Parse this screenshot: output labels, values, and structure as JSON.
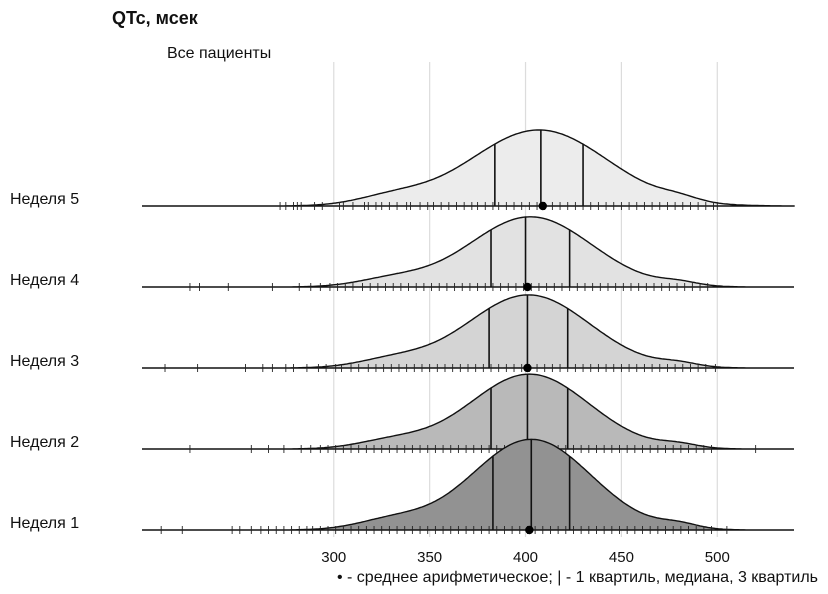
{
  "chart_data": {
    "type": "ridgeline",
    "title": "QTc, мсек",
    "subtitle": "Все пациенты",
    "caption": "• - среднее арифметическое; | - 1 квартиль, медиана, 3 квартиль",
    "xlim": [
      200,
      540
    ],
    "xticks": [
      "300",
      "350",
      "400",
      "450",
      "500"
    ],
    "grid": true,
    "series": [
      {
        "name": "Неделя 5",
        "fill": "#ececec",
        "q1": 384,
        "median": 408,
        "q3": 430,
        "mean": 409,
        "peak": 1.3,
        "rugs": [
          272,
          275,
          279,
          281,
          283,
          290,
          294,
          303,
          305,
          310,
          316,
          318,
          322,
          325,
          329,
          333,
          338,
          340,
          345,
          349,
          352,
          356,
          360,
          364,
          368,
          372,
          375,
          379,
          383,
          386,
          390,
          394,
          398,
          402,
          406,
          410,
          414,
          418,
          422,
          426,
          430,
          434,
          438,
          442,
          446,
          450,
          454,
          458,
          462,
          466,
          470,
          474,
          478,
          482,
          486,
          490,
          494,
          498,
          500
        ]
      },
      {
        "name": "Неделя 4",
        "fill": "#e2e2e2",
        "q1": 382,
        "median": 400,
        "q3": 423,
        "mean": 401,
        "peak": 1.2,
        "rugs": [
          225,
          230,
          245,
          268,
          282,
          288,
          293,
          298,
          302,
          306,
          310,
          315,
          319,
          323,
          327,
          331,
          335,
          339,
          343,
          347,
          351,
          355,
          359,
          363,
          367,
          371,
          375,
          379,
          383,
          387,
          391,
          395,
          399,
          403,
          407,
          411,
          415,
          419,
          423,
          427,
          431,
          435,
          439,
          443,
          447,
          451,
          455,
          459,
          463,
          467,
          471,
          475,
          479,
          483,
          487,
          491,
          495
        ]
      },
      {
        "name": "Неделя 3",
        "fill": "#d4d4d4",
        "q1": 381,
        "median": 401,
        "q3": 422,
        "mean": 401,
        "peak": 1.25,
        "rugs": [
          212,
          229,
          254,
          263,
          268,
          275,
          279,
          286,
          292,
          296,
          301,
          304,
          309,
          313,
          318,
          322,
          326,
          330,
          334,
          338,
          342,
          346,
          350,
          354,
          358,
          362,
          366,
          370,
          374,
          378,
          382,
          386,
          390,
          394,
          398,
          402,
          406,
          410,
          414,
          418,
          422,
          426,
          430,
          434,
          438,
          442,
          446,
          450,
          454,
          458,
          462,
          466,
          470,
          474,
          478,
          482,
          486,
          490,
          494,
          499
        ]
      },
      {
        "name": "Неделя 2",
        "fill": "#b9b9b9",
        "q1": 382,
        "median": 401,
        "q3": 422,
        "mean": 401,
        "peak": 1.28,
        "rugs": [
          225,
          257,
          266,
          274,
          283,
          288,
          293,
          297,
          301,
          305,
          309,
          313,
          317,
          321,
          325,
          329,
          333,
          337,
          341,
          345,
          349,
          353,
          357,
          361,
          365,
          369,
          373,
          377,
          381,
          385,
          389,
          393,
          397,
          401,
          405,
          409,
          413,
          417,
          421,
          425,
          429,
          433,
          437,
          441,
          445,
          449,
          453,
          457,
          461,
          465,
          469,
          473,
          477,
          481,
          485,
          489,
          493,
          497,
          520
        ]
      },
      {
        "name": "Неделя 1",
        "fill": "#929292",
        "q1": 383,
        "median": 403,
        "q3": 423,
        "mean": 402,
        "peak": 1.55,
        "rugs": [
          210,
          221,
          247,
          251,
          257,
          262,
          266,
          270,
          274,
          278,
          282,
          286,
          289,
          293,
          297,
          301,
          305,
          309,
          313,
          317,
          321,
          325,
          329,
          333,
          337,
          341,
          345,
          349,
          353,
          357,
          361,
          365,
          369,
          373,
          377,
          381,
          385,
          389,
          393,
          397,
          401,
          405,
          409,
          413,
          417,
          421,
          425,
          429,
          433,
          437,
          441,
          445,
          449,
          453,
          457,
          461,
          465,
          469,
          473,
          477,
          481,
          485,
          489,
          493,
          497,
          505
        ]
      }
    ]
  }
}
